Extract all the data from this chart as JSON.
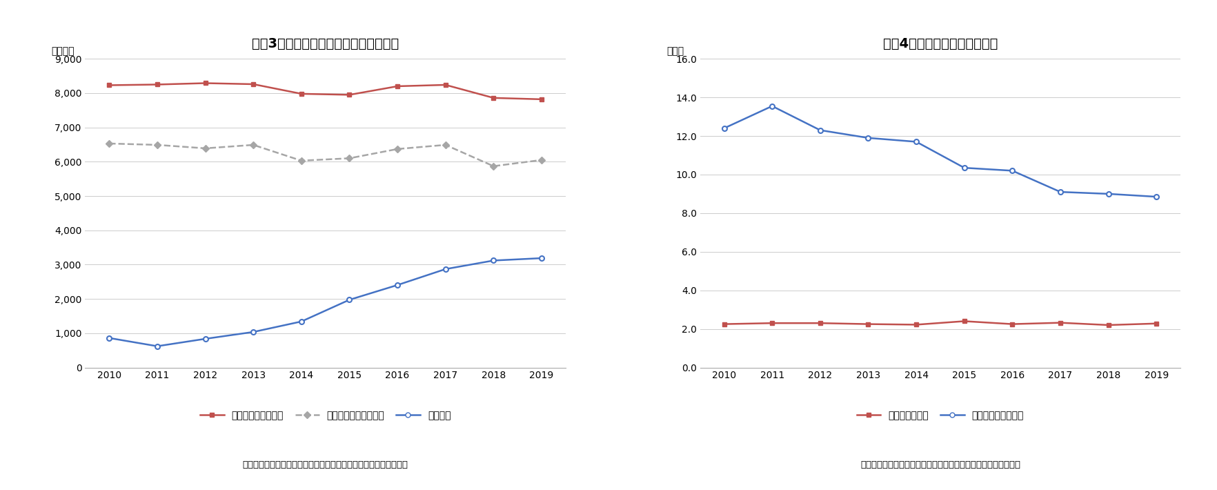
{
  "chart3": {
    "title": "図表3　訪日客数と国内旅行客数の推移",
    "ylabel": "（万人）",
    "years": [
      2010,
      2011,
      2012,
      2013,
      2014,
      2015,
      2016,
      2017,
      2018,
      2019
    ],
    "domestic_stay": [
      8230,
      8250,
      8290,
      8260,
      7980,
      7950,
      8200,
      8240,
      7860,
      7820
    ],
    "domestic_daytrip": [
      6530,
      6490,
      6390,
      6490,
      6030,
      6100,
      6370,
      6490,
      5870,
      6050
    ],
    "foreign_visitors": [
      860,
      621,
      836,
      1036,
      1341,
      1974,
      2404,
      2869,
      3119,
      3188
    ],
    "ylim": [
      0,
      9000
    ],
    "yticks": [
      0,
      1000,
      2000,
      3000,
      4000,
      5000,
      6000,
      7000,
      8000,
      9000
    ],
    "color_stay": "#C0504D",
    "color_daytrip": "#A6A6A6",
    "color_foreign": "#4472C4",
    "caption": "（資料）　観光庁の公表データをもとにニッセイ基礎研究所が作成",
    "legend": [
      "国内旅行客（宿泊）",
      "国内旅行客（日帰り）",
      "訪日客数"
    ]
  },
  "chart4": {
    "title": "図表4　旅行者の平均宿泊日数",
    "ylabel": "（日）",
    "years": [
      2010,
      2011,
      2012,
      2013,
      2014,
      2015,
      2016,
      2017,
      2018,
      2019
    ],
    "japanese_avg": [
      2.25,
      2.3,
      2.3,
      2.25,
      2.22,
      2.4,
      2.25,
      2.32,
      2.2,
      2.28
    ],
    "foreign_avg": [
      12.4,
      13.55,
      12.3,
      11.9,
      11.7,
      10.35,
      10.2,
      9.1,
      9.0,
      8.85
    ],
    "ylim": [
      0,
      16
    ],
    "yticks": [
      0.0,
      2.0,
      4.0,
      6.0,
      8.0,
      10.0,
      12.0,
      14.0,
      16.0
    ],
    "color_japanese": "#C0504D",
    "color_foreign": "#4472C4",
    "caption": "（資料）　観光庁の公表データを基にニッセイ基礎研究所が作成",
    "legend": [
      "日本人平均泊数",
      "訪日外国人平均泊数"
    ]
  }
}
